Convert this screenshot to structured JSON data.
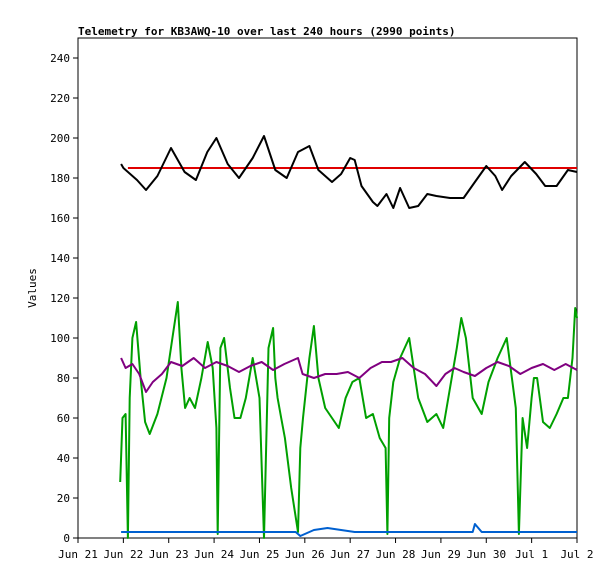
{
  "chart_data": {
    "type": "line",
    "title": "Telemetry for KB3AWQ-10 over last 240 hours (2990 points)",
    "xlabel": "",
    "ylabel": "Values",
    "ylim": [
      0,
      250
    ],
    "yticks": [
      0,
      20,
      40,
      60,
      80,
      100,
      120,
      140,
      160,
      180,
      200,
      220,
      240
    ],
    "xlim": [
      0,
      11
    ],
    "xticks": [
      {
        "x": 0,
        "label": "Jun 21"
      },
      {
        "x": 1,
        "label": "Jun 22"
      },
      {
        "x": 2,
        "label": "Jun 23"
      },
      {
        "x": 3,
        "label": "Jun 24"
      },
      {
        "x": 4,
        "label": "Jun 25"
      },
      {
        "x": 5,
        "label": "Jun 26"
      },
      {
        "x": 6,
        "label": "Jun 27"
      },
      {
        "x": 7,
        "label": "Jun 28"
      },
      {
        "x": 8,
        "label": "Jun 29"
      },
      {
        "x": 9,
        "label": "Jun 30"
      },
      {
        "x": 10,
        "label": "Jul 1"
      },
      {
        "x": 11,
        "label": "Jul 2"
      }
    ],
    "grid": false,
    "series": [
      {
        "color": "#e00000",
        "x": [
          1.1,
          1.5,
          2.0,
          2.5,
          3.0,
          3.5,
          4.0,
          4.5,
          5.0,
          5.5,
          6.0,
          6.5,
          7.0,
          7.5,
          8.0,
          8.5,
          9.0,
          9.5,
          10.0,
          10.5,
          11.0
        ],
        "y": [
          185,
          185,
          185,
          185,
          185,
          185,
          185,
          185,
          185,
          185,
          185,
          185,
          185,
          185,
          185,
          185,
          185,
          185,
          185,
          185,
          185
        ]
      },
      {
        "color": "#000000",
        "x": [
          0.95,
          1.0,
          1.3,
          1.5,
          1.75,
          2.05,
          2.35,
          2.6,
          2.85,
          3.05,
          3.3,
          3.55,
          3.85,
          4.1,
          4.35,
          4.6,
          4.85,
          5.1,
          5.3,
          5.6,
          5.8,
          6.0,
          6.1,
          6.25,
          6.5,
          6.6,
          6.8,
          6.95,
          7.1,
          7.3,
          7.5,
          7.7,
          7.9,
          8.2,
          8.5,
          8.75,
          9.0,
          9.2,
          9.35,
          9.55,
          9.85,
          10.1,
          10.3,
          10.55,
          10.8,
          11.0
        ],
        "y": [
          187,
          185,
          179,
          174,
          181,
          195,
          183,
          179,
          193,
          200,
          187,
          180,
          190,
          201,
          184,
          180,
          193,
          196,
          184,
          178,
          182,
          190,
          189,
          176,
          168,
          166,
          172,
          165,
          175,
          165,
          166,
          172,
          171,
          170,
          170,
          178,
          186,
          181,
          174,
          181,
          188,
          182,
          176,
          176,
          184,
          183
        ]
      },
      {
        "color": "#00a000",
        "x": [
          0.93,
          0.98,
          1.05,
          1.1,
          1.14,
          1.2,
          1.28,
          1.38,
          1.48,
          1.58,
          1.75,
          1.95,
          2.1,
          2.2,
          2.28,
          2.36,
          2.46,
          2.58,
          2.72,
          2.86,
          2.97,
          3.05,
          3.08,
          3.14,
          3.22,
          3.35,
          3.45,
          3.58,
          3.7,
          3.85,
          4.0,
          4.1,
          4.2,
          4.3,
          4.35,
          4.4,
          4.48,
          4.56,
          4.7,
          4.85,
          4.9,
          4.96,
          5.1,
          5.2,
          5.3,
          5.45,
          5.6,
          5.75,
          5.9,
          6.05,
          6.2,
          6.35,
          6.5,
          6.65,
          6.78,
          6.82,
          6.86,
          6.95,
          7.1,
          7.3,
          7.5,
          7.7,
          7.9,
          8.05,
          8.2,
          8.35,
          8.45,
          8.55,
          8.7,
          8.9,
          9.05,
          9.25,
          9.45,
          9.65,
          9.72,
          9.8,
          9.9,
          10.0,
          10.05,
          10.12,
          10.25,
          10.4,
          10.55,
          10.7,
          10.8,
          10.9,
          10.96,
          11.0
        ],
        "y": [
          28,
          60,
          62,
          0,
          70,
          100,
          108,
          80,
          58,
          52,
          62,
          80,
          103,
          118,
          85,
          65,
          70,
          65,
          80,
          98,
          85,
          55,
          2,
          95,
          100,
          75,
          60,
          60,
          70,
          90,
          70,
          0,
          95,
          105,
          80,
          70,
          60,
          50,
          25,
          3,
          45,
          60,
          90,
          106,
          80,
          65,
          60,
          55,
          70,
          78,
          80,
          60,
          62,
          50,
          45,
          2,
          60,
          78,
          90,
          100,
          70,
          58,
          62,
          55,
          75,
          95,
          110,
          100,
          70,
          62,
          78,
          90,
          100,
          65,
          2,
          60,
          45,
          70,
          80,
          80,
          58,
          55,
          62,
          70,
          70,
          90,
          115,
          110
        ]
      },
      {
        "color": "#800080",
        "x": [
          0.95,
          1.05,
          1.2,
          1.35,
          1.5,
          1.65,
          1.85,
          2.05,
          2.3,
          2.55,
          2.8,
          3.05,
          3.3,
          3.55,
          3.8,
          4.05,
          4.3,
          4.55,
          4.85,
          4.95,
          5.2,
          5.45,
          5.7,
          5.95,
          6.2,
          6.45,
          6.7,
          6.9,
          7.15,
          7.4,
          7.65,
          7.9,
          8.1,
          8.3,
          8.5,
          8.75,
          9.0,
          9.25,
          9.5,
          9.75,
          10.0,
          10.25,
          10.5,
          10.75,
          11.0
        ],
        "y": [
          90,
          85,
          87,
          82,
          73,
          78,
          82,
          88,
          86,
          90,
          85,
          88,
          86,
          83,
          86,
          88,
          84,
          87,
          90,
          82,
          80,
          82,
          82,
          83,
          80,
          85,
          88,
          88,
          90,
          85,
          82,
          76,
          82,
          85,
          83,
          81,
          85,
          88,
          86,
          82,
          85,
          87,
          84,
          87,
          84
        ]
      },
      {
        "color": "#0060d0",
        "x": [
          0.95,
          1.2,
          1.5,
          1.8,
          2.1,
          2.4,
          2.7,
          3.0,
          3.3,
          3.6,
          3.9,
          4.2,
          4.5,
          4.8,
          4.9,
          5.2,
          5.5,
          5.8,
          6.1,
          6.4,
          6.7,
          7.0,
          7.3,
          7.6,
          7.9,
          8.2,
          8.5,
          8.7,
          8.75,
          8.9,
          9.2,
          9.5,
          9.8,
          10.1,
          10.4,
          10.7,
          11.0
        ],
        "y": [
          3,
          3,
          3,
          3,
          3,
          3,
          3,
          3,
          3,
          3,
          3,
          3,
          3,
          3,
          1,
          4,
          5,
          4,
          3,
          3,
          3,
          3,
          3,
          3,
          3,
          3,
          3,
          3,
          7,
          3,
          3,
          3,
          3,
          3,
          3,
          3,
          3
        ]
      }
    ]
  }
}
